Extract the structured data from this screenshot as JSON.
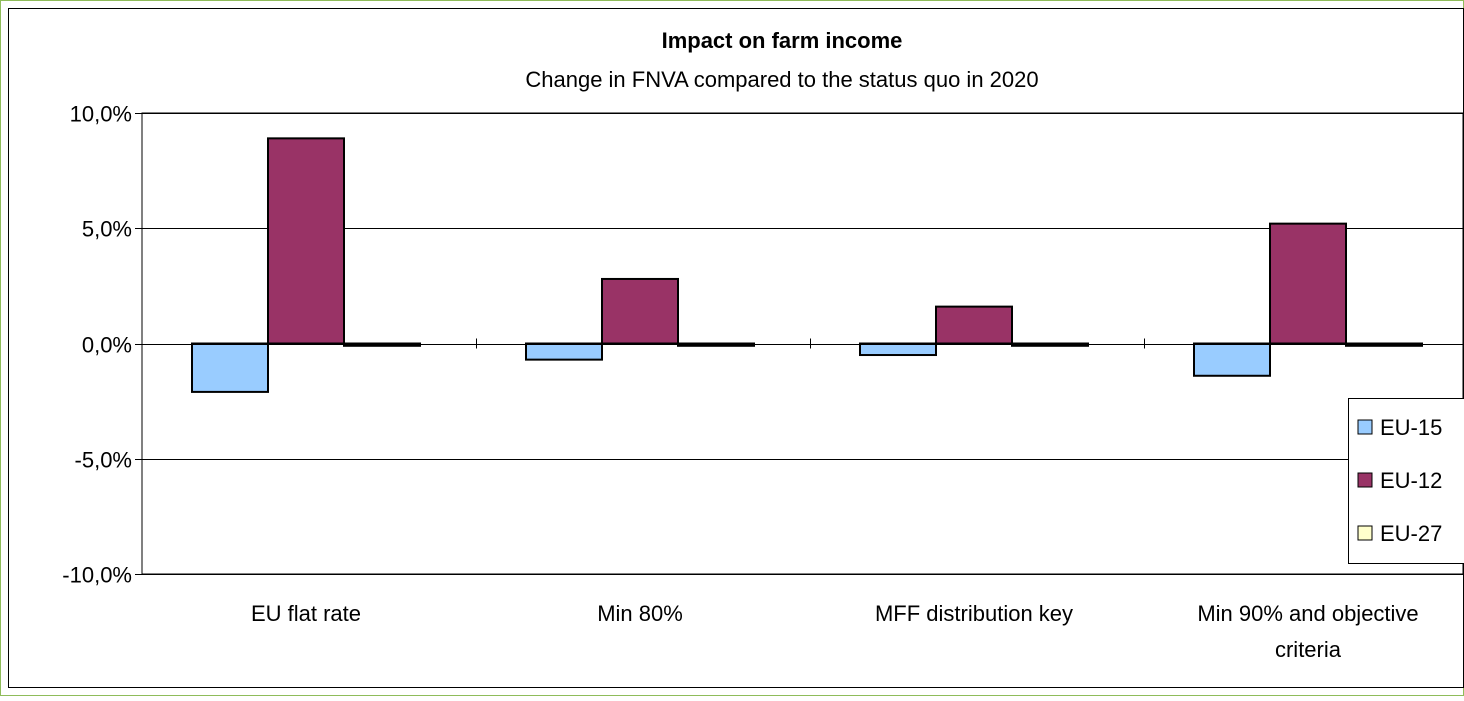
{
  "chart_data": {
    "type": "bar",
    "title": "Impact on farm income",
    "subtitle": "Change in FNVA compared to  the status quo in 2020",
    "categories": [
      [
        "EU flat rate"
      ],
      [
        "Min 80%"
      ],
      [
        "MFF distribution key"
      ],
      [
        "Min 90% and objective",
        "criteria"
      ]
    ],
    "series": [
      {
        "name": "EU-15",
        "color": "#99ccff",
        "values": [
          -2.1,
          -0.7,
          -0.5,
          -1.4
        ]
      },
      {
        "name": "EU-12",
        "color": "#993366",
        "values": [
          8.9,
          2.8,
          1.6,
          5.2
        ]
      },
      {
        "name": "EU-27",
        "color": "#ffffcc",
        "values": [
          -0.1,
          -0.1,
          -0.1,
          -0.1
        ]
      }
    ],
    "ylim": [
      -10,
      10
    ],
    "yticks": [
      10,
      5,
      0,
      -5,
      -10
    ],
    "ytick_labels": [
      "10,0%",
      "5,0%",
      "0,0%",
      "-5,0%",
      "-10,0%"
    ],
    "grid": true,
    "legend_position": "right",
    "colors": {
      "background": "#ffffff",
      "frame_border": "#000000",
      "outer_border": "#6b8e23",
      "gridline": "#000000"
    }
  }
}
